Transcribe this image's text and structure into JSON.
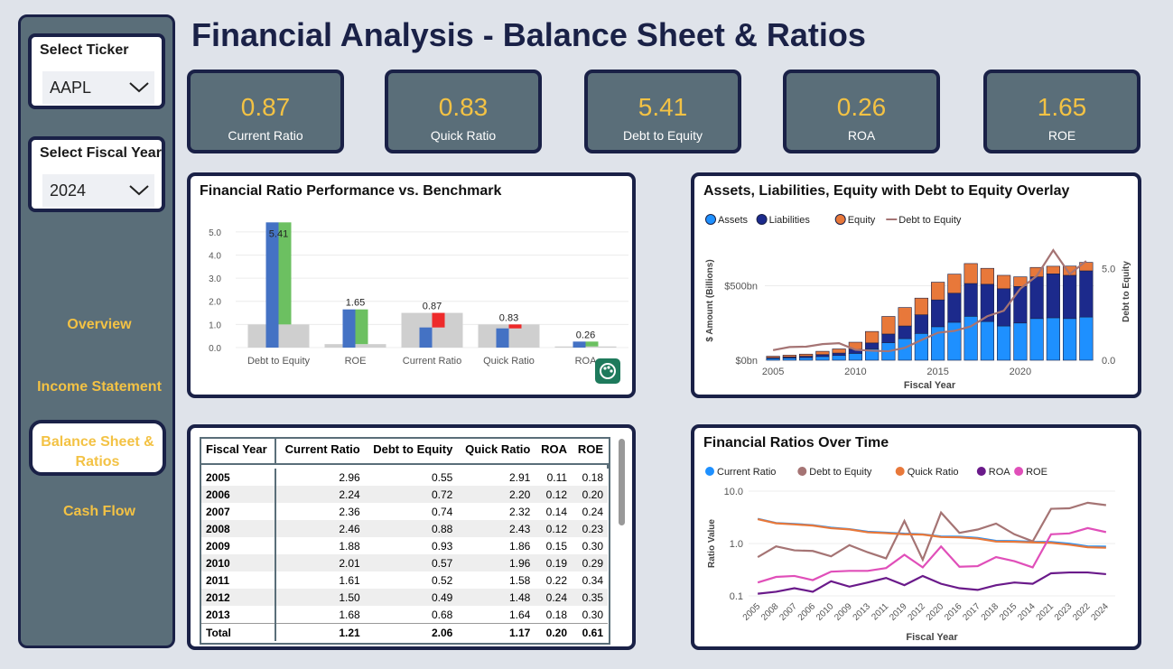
{
  "title": "Financial Analysis - Balance Sheet & Ratios",
  "slicers": {
    "ticker_label": "Select Ticker",
    "ticker_value": "AAPL",
    "year_label": "Select Fiscal Year",
    "year_value": "2024"
  },
  "nav": [
    "Overview",
    "Income Statement",
    "Balance Sheet & Ratios",
    "Cash Flow"
  ],
  "nav_active": 2,
  "kpis": [
    {
      "value": "0.87",
      "label": "Current Ratio"
    },
    {
      "value": "0.83",
      "label": "Quick Ratio"
    },
    {
      "value": "5.41",
      "label": "Debt to Equity"
    },
    {
      "value": "0.26",
      "label": "ROA"
    },
    {
      "value": "1.65",
      "label": "ROE"
    }
  ],
  "colors": {
    "navy": "#1a2147",
    "slate": "#5a6e79",
    "gold": "#f3c244",
    "bar_blue": "#4472c4",
    "bar_green": "#6cc061",
    "bar_red": "#ee2a2a",
    "bench": "#cfcfcf",
    "assets": "#1e90ff",
    "liabilities": "#1c2a8c",
    "equity": "#e8783a",
    "dte": "#a57474",
    "roa": "#6a1a8a",
    "roe": "#e04fb9"
  },
  "chart_bench": {
    "title": "Financial Ratio Performance vs. Benchmark",
    "chart_data": {
      "type": "bar",
      "categories": [
        "Debt to Equity",
        "ROE",
        "Current Ratio",
        "Quick Ratio",
        "ROA"
      ],
      "benchmark": [
        1.0,
        0.15,
        1.5,
        1.0,
        0.05
      ],
      "actual": [
        5.41,
        1.65,
        0.87,
        0.83,
        0.26
      ],
      "data_labels": [
        "5.41",
        "1.65",
        "0.87",
        "0.83",
        "0.26"
      ],
      "yticks": [
        "0.0",
        "1.0",
        "2.0",
        "3.0",
        "4.0",
        "5.0"
      ],
      "ylim": [
        0,
        5.5
      ]
    }
  },
  "chart_alde": {
    "title": "Assets, Liabilities, Equity with Debt to Equity Overlay",
    "legend": [
      "Assets",
      "Liabilities",
      "Equity",
      "Debt to Equity"
    ],
    "xlabel": "Fiscal Year",
    "ylabel": "$ Amount (Billions)",
    "y2label": "Debt to Equity",
    "yticks": [
      "$0bn",
      "$500bn"
    ],
    "y2ticks": [
      "0.0",
      "5.0"
    ],
    "xticks": [
      "2005",
      "2010",
      "2015",
      "2020"
    ],
    "chart_data": {
      "type": "bar",
      "x": [
        2005,
        2006,
        2007,
        2008,
        2009,
        2010,
        2011,
        2012,
        2013,
        2014,
        2015,
        2016,
        2017,
        2018,
        2019,
        2020,
        2021,
        2022,
        2023,
        2024
      ],
      "series": [
        {
          "name": "Assets",
          "values": [
            12,
            15,
            18,
            25,
            32,
            46,
            76,
            118,
            145,
            180,
            225,
            255,
            295,
            260,
            230,
            250,
            280,
            285,
            280,
            290
          ]
        },
        {
          "name": "Liabilities",
          "values": [
            5,
            7,
            9,
            13,
            16,
            28,
            40,
            58,
            85,
            125,
            180,
            195,
            220,
            250,
            250,
            245,
            280,
            295,
            290,
            310
          ]
        },
        {
          "name": "Equity",
          "values": [
            10,
            12,
            14,
            22,
            28,
            47,
            77,
            118,
            124,
            112,
            119,
            128,
            134,
            107,
            90,
            65,
            63,
            51,
            62,
            57
          ]
        },
        {
          "name": "Debt to Equity",
          "values": [
            0.55,
            0.72,
            0.74,
            0.88,
            0.93,
            0.57,
            0.52,
            0.49,
            0.68,
            1.1,
            1.5,
            1.6,
            1.85,
            2.4,
            2.7,
            3.9,
            4.6,
            6.0,
            4.7,
            5.41
          ]
        }
      ],
      "ylim": [
        0,
        800
      ],
      "y2lim": [
        0,
        6.5
      ]
    }
  },
  "table": {
    "headers": [
      "Fiscal Year",
      "Current Ratio",
      "Debt to Equity",
      "Quick Ratio",
      "ROA",
      "ROE"
    ],
    "rows": [
      [
        "2005",
        "2.96",
        "0.55",
        "2.91",
        "0.11",
        "0.18"
      ],
      [
        "2006",
        "2.24",
        "0.72",
        "2.20",
        "0.12",
        "0.20"
      ],
      [
        "2007",
        "2.36",
        "0.74",
        "2.32",
        "0.14",
        "0.24"
      ],
      [
        "2008",
        "2.46",
        "0.88",
        "2.43",
        "0.12",
        "0.23"
      ],
      [
        "2009",
        "1.88",
        "0.93",
        "1.86",
        "0.15",
        "0.30"
      ],
      [
        "2010",
        "2.01",
        "0.57",
        "1.96",
        "0.19",
        "0.29"
      ],
      [
        "2011",
        "1.61",
        "0.52",
        "1.58",
        "0.22",
        "0.34"
      ],
      [
        "2012",
        "1.50",
        "0.49",
        "1.48",
        "0.24",
        "0.35"
      ],
      [
        "2013",
        "1.68",
        "0.68",
        "1.64",
        "0.18",
        "0.30"
      ]
    ],
    "total": [
      "Total",
      "1.21",
      "2.06",
      "1.17",
      "0.20",
      "0.61"
    ]
  },
  "chart_time": {
    "title": "Financial Ratios Over Time",
    "legend": [
      "Current Ratio",
      "Debt to Equity",
      "Quick Ratio",
      "ROA",
      "ROE"
    ],
    "xlabel": "Fiscal Year",
    "ylabel": "Ratio Value",
    "yticks": [
      "10.0",
      "1.0",
      "0.1"
    ],
    "chart_data": {
      "type": "line",
      "x": [
        "2005",
        "2008",
        "2007",
        "2006",
        "2010",
        "2009",
        "2013",
        "2011",
        "2019",
        "2012",
        "2020",
        "2016",
        "2017",
        "2018",
        "2015",
        "2014",
        "2021",
        "2023",
        "2022",
        "2024"
      ],
      "series": [
        {
          "name": "Current Ratio",
          "values": [
            2.96,
            2.46,
            2.36,
            2.24,
            2.01,
            1.88,
            1.68,
            1.61,
            1.54,
            1.5,
            1.36,
            1.35,
            1.28,
            1.12,
            1.11,
            1.08,
            1.07,
            0.99,
            0.88,
            0.87
          ]
        },
        {
          "name": "Debt to Equity",
          "values": [
            0.55,
            0.88,
            0.74,
            0.72,
            0.57,
            0.93,
            0.68,
            0.52,
            2.7,
            0.49,
            3.9,
            1.6,
            1.85,
            2.4,
            1.5,
            1.1,
            4.6,
            4.7,
            6.0,
            5.41
          ]
        },
        {
          "name": "Quick Ratio",
          "values": [
            2.91,
            2.43,
            2.32,
            2.2,
            1.96,
            1.86,
            1.64,
            1.58,
            1.5,
            1.48,
            1.33,
            1.31,
            1.24,
            1.09,
            1.08,
            1.05,
            1.03,
            0.95,
            0.85,
            0.83
          ]
        },
        {
          "name": "ROA",
          "values": [
            0.11,
            0.12,
            0.14,
            0.12,
            0.19,
            0.15,
            0.18,
            0.22,
            0.16,
            0.24,
            0.17,
            0.14,
            0.13,
            0.16,
            0.18,
            0.17,
            0.27,
            0.28,
            0.28,
            0.26
          ]
        },
        {
          "name": "ROE",
          "values": [
            0.18,
            0.23,
            0.24,
            0.2,
            0.29,
            0.3,
            0.3,
            0.34,
            0.61,
            0.35,
            0.88,
            0.36,
            0.37,
            0.55,
            0.46,
            0.35,
            1.5,
            1.56,
            1.97,
            1.65
          ]
        }
      ],
      "log_scale": true,
      "ylim": [
        0.1,
        10
      ]
    }
  }
}
